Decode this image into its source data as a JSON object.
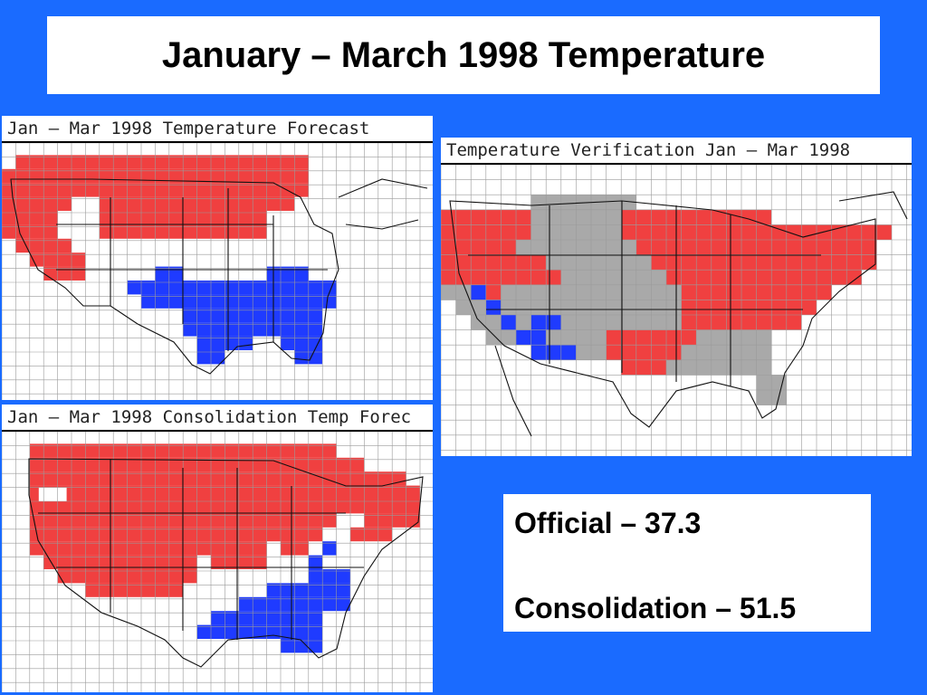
{
  "slide": {
    "title": "January – March 1998 Temperature"
  },
  "maps": {
    "forecast": {
      "title": "Jan – Mar 1998 Temperature Forecast"
    },
    "consolidation": {
      "title": "Jan – Mar 1998 Consolidation Temp Forec"
    },
    "verification": {
      "title": "Temperature Verification Jan – Mar 1998"
    }
  },
  "scores": {
    "official": "Official – 37.3",
    "consolidation": "Consolidation – 51.5"
  },
  "colors": {
    "background": "#1a6bff",
    "above_normal": "#f04040",
    "below_normal": "#1f3bff",
    "near_normal": "#a9a9a9"
  }
}
